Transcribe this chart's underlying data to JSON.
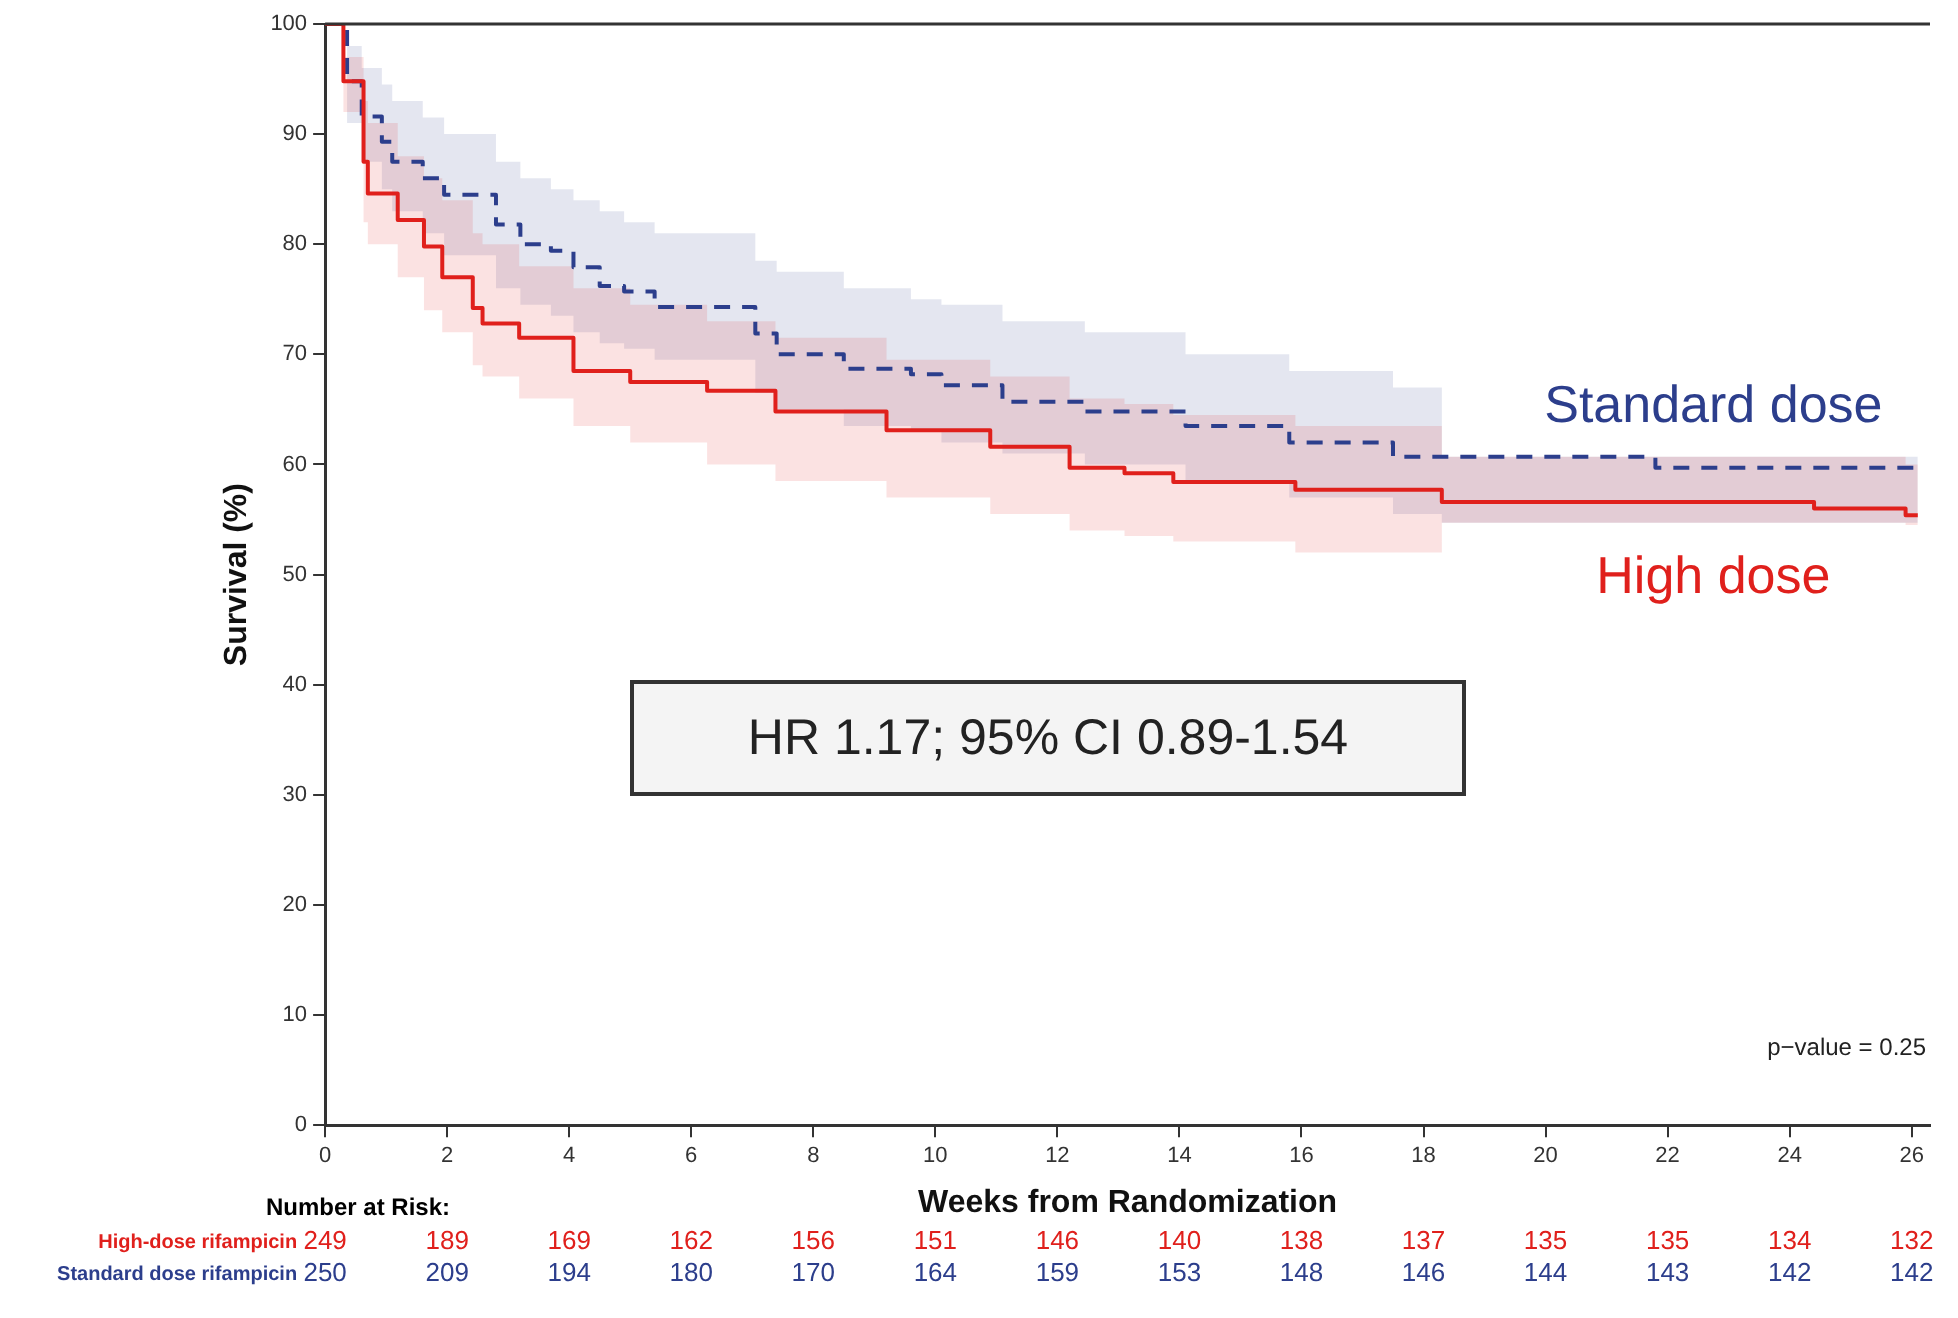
{
  "chart_data": {
    "type": "step",
    "xlabel": "Weeks from Randomization",
    "ylabel": "Survival (%)",
    "xlim": [
      0,
      26.3
    ],
    "xticks": [
      0,
      2,
      4,
      6,
      8,
      10,
      12,
      14,
      16,
      18,
      20,
      22,
      24,
      26
    ],
    "ylim": [
      0,
      100
    ],
    "yticks": [
      0,
      10,
      20,
      30,
      40,
      50,
      60,
      70,
      80,
      90,
      100
    ],
    "grid": false,
    "legend": false,
    "marker": "none",
    "series": [
      {
        "name": "High dose",
        "color": "#e0201c",
        "line_style": "solid",
        "x": [
          0,
          0.3,
          0.63,
          0.7,
          1.19,
          1.62,
          1.92,
          2.42,
          2.58,
          3.18,
          4.07,
          5,
          6.26,
          7.38,
          9.2,
          10.9,
          12.2,
          13.1,
          13.9,
          15.9,
          18.3,
          24.4,
          25.9,
          26.1
        ],
        "values": [
          100,
          94.8,
          87.5,
          84.6,
          82.2,
          79.8,
          77,
          74.2,
          72.8,
          71.5,
          68.5,
          67.5,
          66.7,
          64.8,
          63.1,
          61.6,
          59.7,
          59.2,
          58.4,
          57.7,
          56.6,
          56,
          55.4,
          55.4
        ],
        "lower": [
          100,
          92,
          82,
          80,
          77,
          74,
          72,
          69,
          68,
          66,
          63.5,
          62,
          60,
          58.5,
          57,
          55.5,
          54,
          53.5,
          53,
          52,
          54.7,
          54.7,
          54.5,
          54.5
        ],
        "upper": [
          100,
          97,
          93,
          91,
          88,
          86,
          84,
          81,
          80,
          78,
          76,
          74.5,
          73,
          71.5,
          69.5,
          68,
          66,
          65.5,
          64.5,
          63.5,
          60.7,
          60.7,
          60,
          60
        ]
      },
      {
        "name": "Standard dose",
        "color": "#2c3e8c",
        "line_style": "dashed",
        "x": [
          0,
          0.36,
          0.6,
          0.93,
          1.1,
          1.6,
          1.95,
          2.8,
          3.2,
          3.7,
          4.07,
          4.5,
          4.9,
          5.4,
          7.05,
          7.4,
          8.5,
          9.6,
          10.1,
          11.1,
          12.45,
          14.1,
          15.8,
          17.5,
          18.3,
          21.8,
          26.1
        ],
        "values": [
          100,
          94.8,
          91.6,
          89.3,
          87.5,
          86,
          84.5,
          81.8,
          80,
          79.4,
          77.9,
          76.2,
          75.7,
          74.3,
          71.9,
          70,
          68.7,
          68.2,
          67.2,
          65.7,
          64.8,
          63.5,
          62,
          60.7,
          60.7,
          59.7,
          59.7
        ],
        "lower": [
          100,
          91,
          87.5,
          85,
          83,
          81,
          79,
          76,
          74.5,
          73.5,
          72,
          71,
          70.5,
          69.5,
          66.5,
          65,
          63.5,
          63,
          62,
          61,
          60,
          58.5,
          57,
          55.5,
          54.7,
          54.7,
          54.7
        ],
        "upper": [
          100,
          98,
          96,
          94.5,
          93,
          91.5,
          90,
          87.5,
          86,
          85,
          84,
          83,
          82,
          81,
          78.5,
          77.5,
          76,
          75,
          74.5,
          73,
          72,
          70,
          68.5,
          67,
          60.7,
          60.7,
          60.7
        ]
      }
    ],
    "annotations": [
      "HR 1.17; 95% CI 0.89-1.54",
      "p−value = 0.25",
      "Number at Risk:",
      "High-dose rifampicin",
      "249",
      "189",
      "169",
      "162",
      "156",
      "151",
      "146",
      "140",
      "138",
      "137",
      "135",
      "135",
      "134",
      "132",
      "Standard dose rifampicin",
      "250",
      "209",
      "194",
      "180",
      "170",
      "164",
      "159",
      "153",
      "148",
      "146",
      "144",
      "143",
      "142",
      "142"
    ]
  }
}
